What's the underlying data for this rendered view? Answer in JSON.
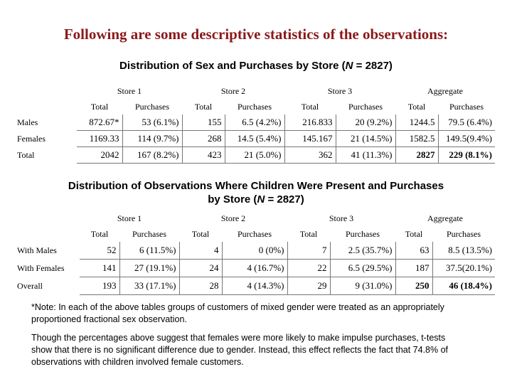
{
  "title": "Following are some descriptive statistics of the observations:",
  "table1": {
    "caption_prefix": "Distribution of Sex and Purchases by Store (",
    "caption_n": "N",
    "caption_suffix": " = 2827)",
    "groups": [
      "Store 1",
      "Store 2",
      "Store 3",
      "Aggregate"
    ],
    "subheaders": [
      "Total",
      "Purchases",
      "Total",
      "Purchases",
      "Total",
      "Purchases",
      "Total",
      "Purchases"
    ],
    "rows": [
      {
        "label": "Males",
        "cells": [
          "872.67*",
          "53 (6.1%)",
          "155",
          "6.5 (4.2%)",
          "216.833",
          "20 (9.2%)",
          "1244.5",
          "79.5 (6.4%)"
        ]
      },
      {
        "label": "Females",
        "cells": [
          "1169.33",
          "114 (9.7%)",
          "268",
          "14.5 (5.4%)",
          "145.167",
          "21 (14.5%)",
          "1582.5",
          "149.5(9.4%)"
        ]
      },
      {
        "label": "Total",
        "cells": [
          "2042",
          "167 (8.2%)",
          "423",
          "21 (5.0%)",
          "362",
          "41 (11.3%)",
          "2827",
          "229 (8.1%)"
        ]
      }
    ]
  },
  "table2": {
    "caption_line1": "Distribution of Observations Where Children Were Present and Purchases",
    "caption_line2_prefix": "by Store (",
    "caption_n": "N",
    "caption_line2_suffix": " = 2827)",
    "groups": [
      "Store 1",
      "Store 2",
      "Store 3",
      "Aggregate"
    ],
    "subheaders": [
      "Total",
      "Purchases",
      "Total",
      "Purchases",
      "Total",
      "Purchases",
      "Total",
      "Purchases"
    ],
    "rows": [
      {
        "label": "With Males",
        "cells": [
          "52",
          "6 (11.5%)",
          "4",
          "0 (0%)",
          "7",
          "2.5 (35.7%)",
          "63",
          "8.5 (13.5%)"
        ]
      },
      {
        "label": "With Females",
        "cells": [
          "141",
          "27 (19.1%)",
          "24",
          "4 (16.7%)",
          "22",
          "6.5 (29.5%)",
          "187",
          "37.5(20.1%)"
        ]
      },
      {
        "label": "Overall",
        "cells": [
          "193",
          "33 (17.1%)",
          "28",
          "4 (14.3%)",
          "29",
          "9 (31.0%)",
          "250",
          "46 (18.4%)"
        ]
      }
    ]
  },
  "note1": "*Note: In each of the above tables groups of customers of mixed gender were treated as an appropriately proportioned fractional sex observation.",
  "note2": "Though the percentages above suggest that females were more likely to make impulse purchases, t-tests show that there is no significant difference due to gender.  Instead, this effect reflects the fact that 74.8% of observations with children involved female customers."
}
